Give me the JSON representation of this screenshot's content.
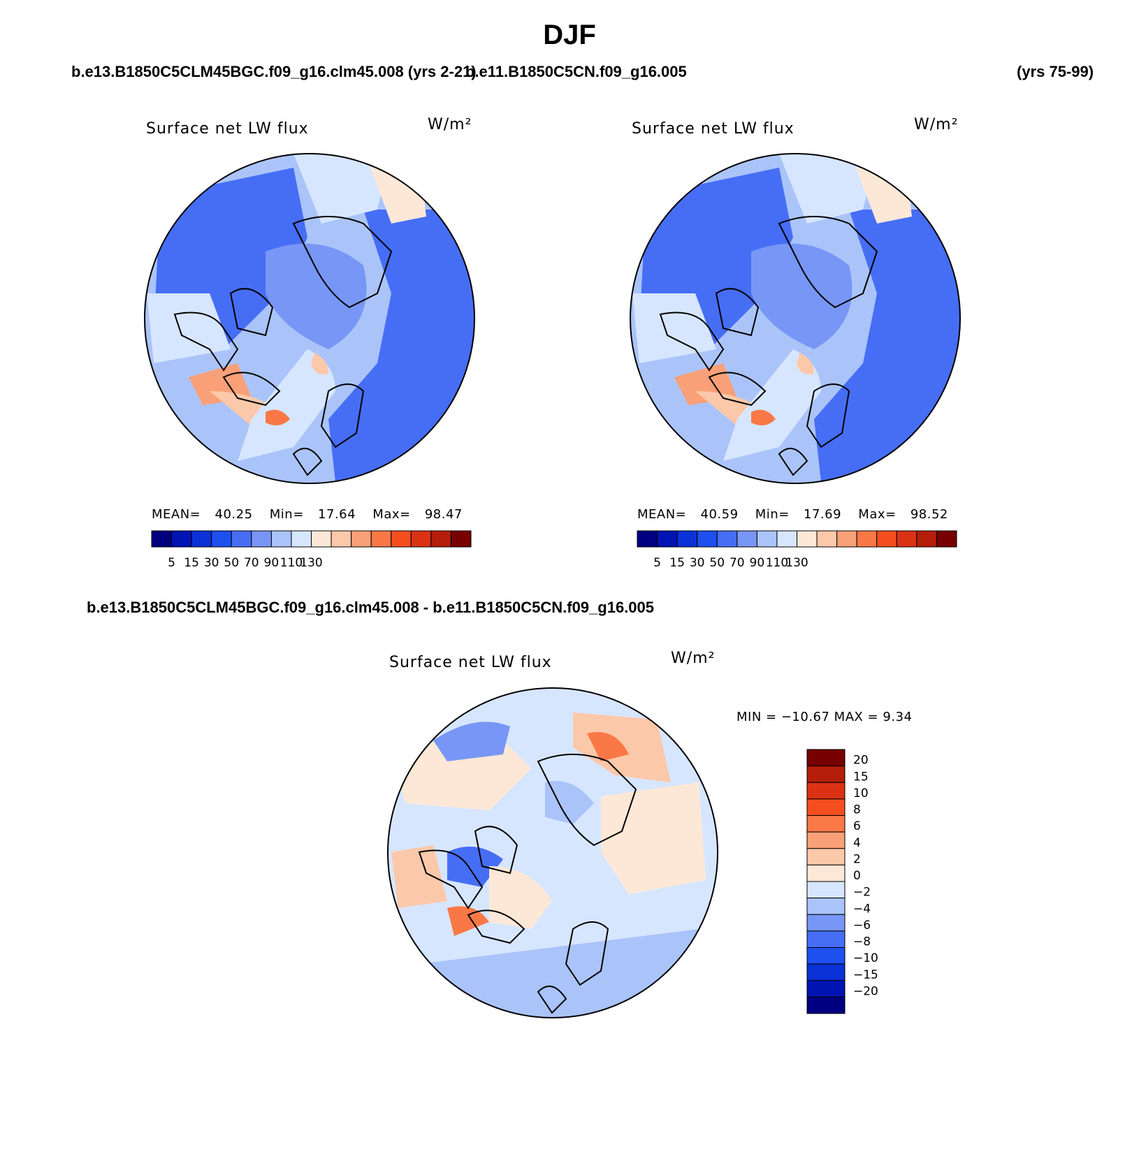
{
  "figure": {
    "title": "DJF",
    "case1_label": "b.e13.B1850C5CLM45BGC.f09_g16.clm45.008 (yrs 2-21)",
    "case2_label": "b.e11.B1850C5CN.f09_g16.005",
    "case2_years": "(yrs 75-99)",
    "diff_label": "b.e13.B1850C5CLM45BGC.f09_g16.clm45.008 - b.e11.B1850C5CN.f09_g16.005"
  },
  "panels": {
    "left": {
      "title": "Surface net LW flux",
      "units": "W/m²",
      "mean_label": "MEAN=",
      "mean": "40.25",
      "min_label": "Min=",
      "min": "17.64",
      "max_label": "Max=",
      "max": "98.47"
    },
    "right": {
      "title": "Surface net LW flux",
      "units": "W/m²",
      "mean_label": "MEAN=",
      "mean": "40.59",
      "min_label": "Min=",
      "min": "17.69",
      "max_label": "Max=",
      "max": "98.52"
    },
    "diff": {
      "title": "Surface net LW flux",
      "units": "W/m²",
      "minmax": "MIN = −10.67 MAX =    9.34"
    }
  },
  "chart_data": [
    {
      "type": "heatmap",
      "title": "Surface net LW flux",
      "units": "W/m²",
      "projection": "north polar stereographic",
      "mean": 40.25,
      "min": 17.64,
      "max": 98.47,
      "colorbar_ticks": [
        "5",
        "15",
        "30",
        "50",
        "70",
        "90",
        "110",
        "130"
      ],
      "colorbar_colors": [
        "#000080",
        "#0014b4",
        "#0a32d7",
        "#1e50f0",
        "#466ef5",
        "#7896f5",
        "#aac4fa",
        "#d7e6ff",
        "#fde8d7",
        "#fcc8aa",
        "#faa078",
        "#fa7846",
        "#f54e1e",
        "#dc3214",
        "#b41e0a",
        "#780000"
      ]
    },
    {
      "type": "heatmap",
      "title": "Surface net LW flux",
      "units": "W/m²",
      "projection": "north polar stereographic",
      "mean": 40.59,
      "min": 17.69,
      "max": 98.52,
      "colorbar_ticks": [
        "5",
        "15",
        "30",
        "50",
        "70",
        "90",
        "110",
        "130"
      ],
      "colorbar_colors": [
        "#000080",
        "#0014b4",
        "#0a32d7",
        "#1e50f0",
        "#466ef5",
        "#7896f5",
        "#aac4fa",
        "#d7e6ff",
        "#fde8d7",
        "#fcc8aa",
        "#faa078",
        "#fa7846",
        "#f54e1e",
        "#dc3214",
        "#b41e0a",
        "#780000"
      ]
    },
    {
      "type": "heatmap",
      "title": "Surface net LW flux",
      "units": "W/m²",
      "projection": "north polar stereographic",
      "min": -10.67,
      "max": 9.34,
      "colorbar_ticks": [
        "20",
        "15",
        "10",
        "8",
        "6",
        "4",
        "2",
        "0",
        "−2",
        "−4",
        "−6",
        "−8",
        "−10",
        "−15",
        "−20"
      ],
      "colorbar_colors": [
        "#780000",
        "#b41e0a",
        "#dc3214",
        "#f54e1e",
        "#fa7846",
        "#faa078",
        "#fcc8aa",
        "#fde8d7",
        "#d7e6ff",
        "#aac4fa",
        "#7896f5",
        "#466ef5",
        "#1e50f0",
        "#0a32d7",
        "#0014b4",
        "#000080"
      ]
    }
  ]
}
